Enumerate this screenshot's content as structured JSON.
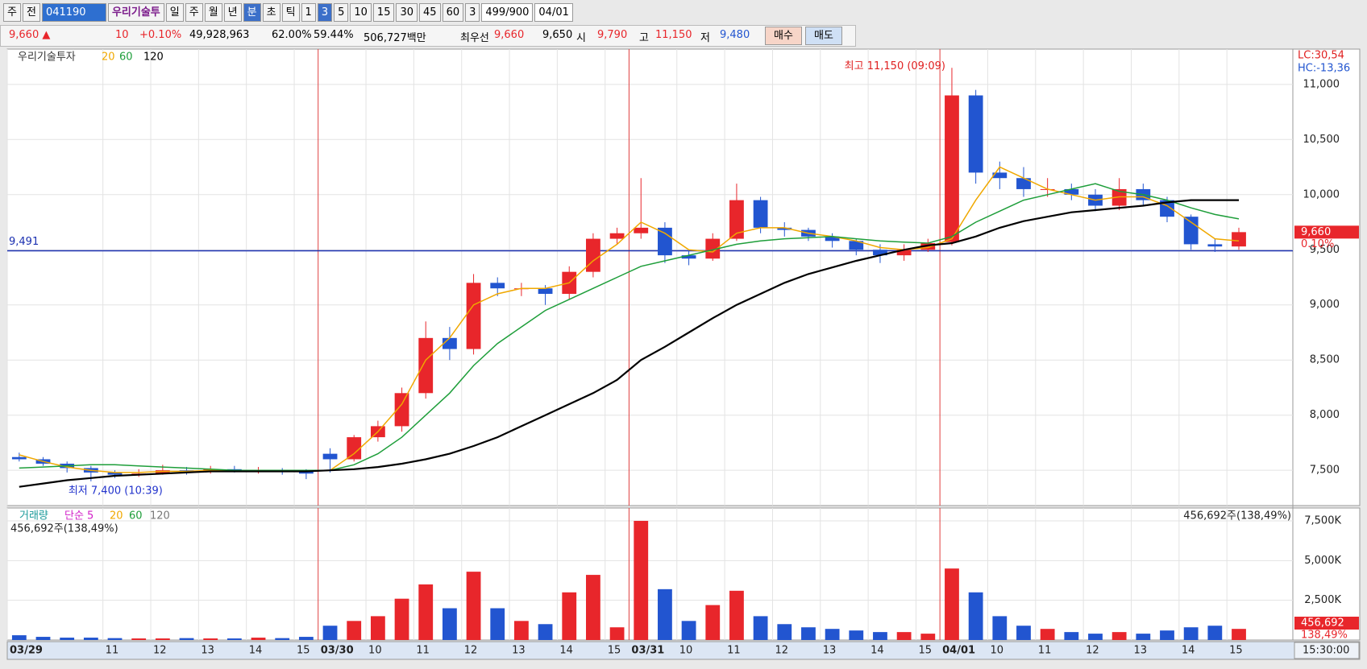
{
  "toolbar": {
    "items": [
      "주",
      "전",
      "041190",
      "우리기술투",
      "일",
      "주",
      "월",
      "년",
      "분",
      "초",
      "틱",
      "1",
      "3",
      "5",
      "10",
      "15",
      "30",
      "45",
      "60",
      "3",
      "499/900",
      "04/01"
    ]
  },
  "quote": {
    "items": [
      "9,660 ▲",
      "10",
      "+0.10%",
      "49,928,963",
      "62.00%",
      "59.44%",
      "506,727백만",
      "최우선",
      "9,660",
      "9,650",
      "시",
      "9,790",
      "고",
      "11,150",
      "저",
      "9,480"
    ],
    "buttons": [
      "매수",
      "매도"
    ]
  },
  "chart_data": [
    {
      "type": "candlestick",
      "series_name": "우리기술투자",
      "up_color": "#e8262b",
      "down_color": "#2255d0",
      "categories": [
        "03/29",
        null,
        null,
        null,
        "11",
        null,
        "12",
        null,
        "13",
        null,
        "14",
        null,
        "15",
        "03/30",
        null,
        "10",
        null,
        "11",
        null,
        "12",
        null,
        "13",
        null,
        "14",
        null,
        "15",
        "03/31",
        null,
        "10",
        null,
        "11",
        null,
        "12",
        null,
        "13",
        null,
        "14",
        null,
        "15",
        "04/01",
        null,
        "10",
        null,
        "11",
        null,
        "12",
        null,
        "13",
        null,
        "14",
        null,
        "15"
      ],
      "open": [
        7620,
        7600,
        7560,
        7520,
        7480,
        7460,
        7470,
        7500,
        7490,
        7510,
        7500,
        7500,
        7490,
        7650,
        7600,
        7800,
        7900,
        8200,
        8700,
        8600,
        9200,
        9150,
        9150,
        9100,
        9300,
        9600,
        9650,
        9700,
        9450,
        9420,
        9600,
        9950,
        9700,
        9680,
        9620,
        9580,
        9500,
        9450,
        9500,
        9570,
        10900,
        10200,
        10150,
        10050,
        10050,
        10000,
        9900,
        10050,
        9950,
        9800,
        9550,
        9530
      ],
      "high": [
        7660,
        7620,
        7580,
        7540,
        7500,
        7510,
        7550,
        7530,
        7540,
        7540,
        7530,
        7520,
        7510,
        7700,
        7820,
        7950,
        8250,
        8850,
        8800,
        9280,
        9250,
        9200,
        9180,
        9350,
        9650,
        9700,
        10150,
        9750,
        9500,
        9650,
        10100,
        9980,
        9750,
        9700,
        9650,
        9600,
        9550,
        9550,
        9600,
        11150,
        10950,
        10300,
        10250,
        10150,
        10100,
        10050,
        10150,
        10100,
        9980,
        9820,
        9600,
        9700
      ],
      "low": [
        7580,
        7540,
        7480,
        7400,
        7430,
        7440,
        7460,
        7460,
        7470,
        7480,
        7470,
        7460,
        7420,
        7480,
        7580,
        7760,
        7850,
        8150,
        8500,
        8550,
        9080,
        9080,
        9000,
        9050,
        9250,
        9550,
        9600,
        9380,
        9360,
        9400,
        9580,
        9650,
        9620,
        9580,
        9520,
        9450,
        9380,
        9400,
        9480,
        9540,
        10100,
        10050,
        9980,
        9980,
        9950,
        9850,
        9860,
        9900,
        9750,
        9500,
        9480,
        9500
      ],
      "close": [
        7600,
        7560,
        7520,
        7480,
        7460,
        7470,
        7500,
        7490,
        7510,
        7500,
        7500,
        7490,
        7470,
        7600,
        7800,
        7900,
        8200,
        8700,
        8600,
        9200,
        9150,
        9150,
        9100,
        9300,
        9600,
        9650,
        9700,
        9450,
        9420,
        9600,
        9950,
        9700,
        9680,
        9620,
        9580,
        9500,
        9450,
        9500,
        9560,
        10900,
        10200,
        10150,
        10050,
        10050,
        10000,
        9900,
        10050,
        9950,
        9800,
        9550,
        9530,
        9660
      ],
      "ma": [
        {
          "name": "20",
          "color": "#f0a800",
          "values": [
            7640,
            7580,
            7530,
            7500,
            7480,
            7480,
            7490,
            7490,
            7500,
            7500,
            7500,
            7500,
            7490,
            7500,
            7650,
            7850,
            8100,
            8500,
            8700,
            9000,
            9100,
            9150,
            9150,
            9200,
            9400,
            9550,
            9750,
            9650,
            9500,
            9480,
            9650,
            9700,
            9700,
            9650,
            9620,
            9580,
            9520,
            9500,
            9520,
            9600,
            9950,
            10250,
            10150,
            10050,
            10000,
            9950,
            9980,
            9980,
            9900,
            9750,
            9600,
            9580
          ]
        },
        {
          "name": "60",
          "color": "#1e9e3a",
          "values": [
            7520,
            7530,
            7540,
            7550,
            7550,
            7540,
            7530,
            7520,
            7510,
            7500,
            7500,
            7500,
            7500,
            7500,
            7550,
            7650,
            7800,
            8000,
            8200,
            8450,
            8650,
            8800,
            8950,
            9050,
            9150,
            9250,
            9350,
            9400,
            9450,
            9500,
            9550,
            9580,
            9600,
            9610,
            9620,
            9600,
            9580,
            9570,
            9560,
            9620,
            9750,
            9850,
            9950,
            10000,
            10050,
            10100,
            10030,
            10000,
            9950,
            9880,
            9820,
            9780
          ]
        },
        {
          "name": "120",
          "color": "#000000",
          "values": [
            7350,
            7380,
            7410,
            7430,
            7450,
            7460,
            7470,
            7480,
            7490,
            7490,
            7490,
            7490,
            7490,
            7500,
            7510,
            7530,
            7560,
            7600,
            7650,
            7720,
            7800,
            7900,
            8000,
            8100,
            8200,
            8320,
            8500,
            8620,
            8750,
            8880,
            9000,
            9100,
            9200,
            9280,
            9340,
            9400,
            9450,
            9500,
            9540,
            9560,
            9620,
            9700,
            9760,
            9800,
            9840,
            9860,
            9880,
            9900,
            9930,
            9950,
            9950,
            9950
          ]
        }
      ],
      "ylim": [
        7180,
        11320
      ],
      "yticks": [
        {
          "value": 7500,
          "label": "7,500"
        },
        {
          "value": 8000,
          "label": "8,000"
        },
        {
          "value": 8500,
          "label": "8,500"
        },
        {
          "value": 9000,
          "label": "9,000"
        },
        {
          "value": 9500,
          "label": "9,500"
        },
        {
          "value": 10000,
          "label": "10,000"
        },
        {
          "value": 10500,
          "label": "10,500"
        },
        {
          "value": 11000,
          "label": "11,000"
        }
      ],
      "grid": true,
      "hline": {
        "value": 9491,
        "label": "9,491",
        "color": "#1a2fb0"
      },
      "last_price": {
        "value": 9660,
        "label": "9,660"
      },
      "last_change": "0.10%",
      "lc": "LC:30,54",
      "hc": "HC:-13,36",
      "annotations": [
        "최고 11,150 (09:09)",
        "최저 7,400 (10:39)"
      ]
    },
    {
      "type": "bar",
      "name": "거래량",
      "values": [
        300,
        200,
        150,
        150,
        120,
        100,
        100,
        120,
        100,
        100,
        150,
        120,
        200,
        900,
        1200,
        1500,
        2600,
        3500,
        2000,
        4300,
        2000,
        1200,
        1000,
        3000,
        4100,
        800,
        7500,
        3200,
        1200,
        2200,
        3100,
        1500,
        1000,
        800,
        700,
        600,
        500,
        500,
        400,
        4500,
        3000,
        1500,
        900,
        700,
        500,
        400,
        500,
        400,
        600,
        800,
        900,
        700
      ],
      "ylim": [
        0,
        8310
      ],
      "yticks": [
        {
          "value": 2500,
          "label": "2,500K"
        },
        {
          "value": 5000,
          "label": "5,000K"
        },
        {
          "value": 7500,
          "label": "7,500K"
        }
      ],
      "legend": [
        {
          "text": "거래량",
          "color": "#1a9a9a"
        },
        {
          "text": "단순 5",
          "color": "#d21fc8"
        },
        {
          "text": "20",
          "color": "#f0a800"
        },
        {
          "text": "60",
          "color": "#1e9e3a"
        },
        {
          "text": "120",
          "color": "#777777"
        }
      ],
      "volume_text": "456,692주(138,49%)",
      "last_volume": "456,692",
      "last_volume_pct": "138,49%"
    }
  ],
  "time_cursor": "15:30:00"
}
